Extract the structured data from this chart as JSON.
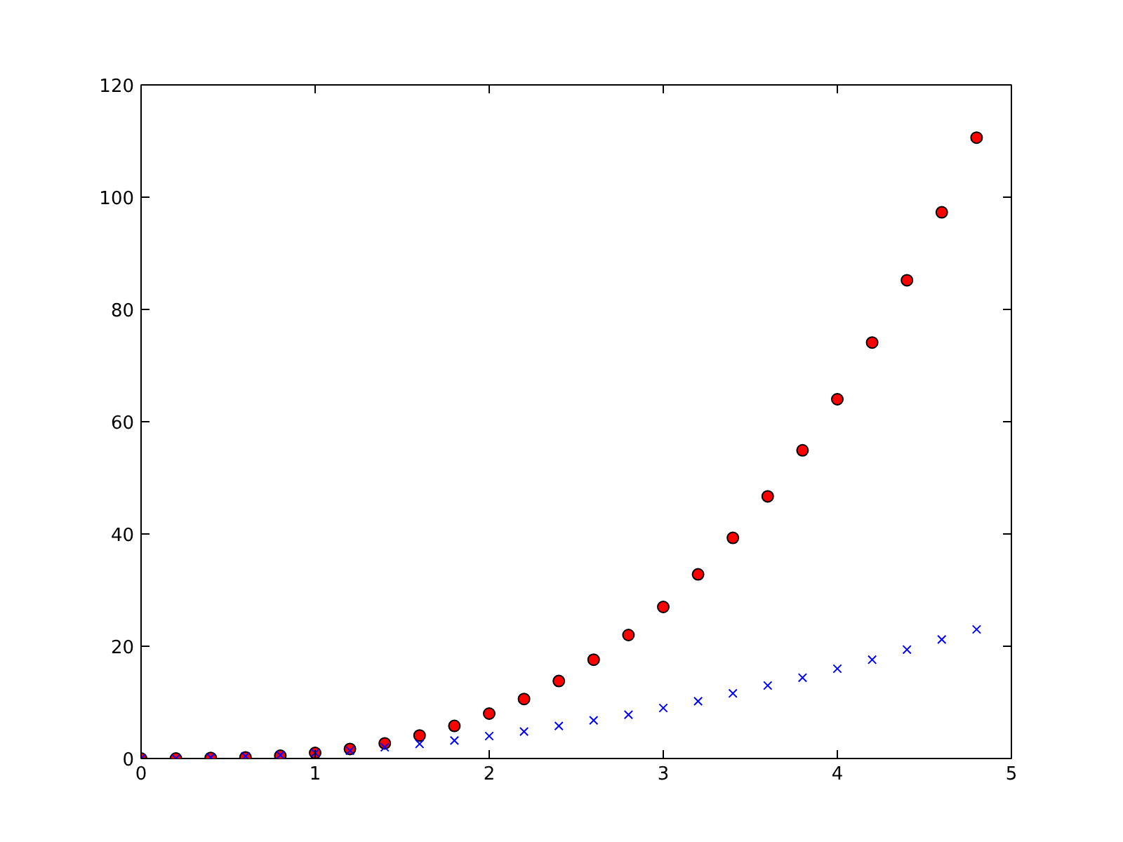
{
  "chart_data": {
    "type": "scatter",
    "x": [
      0,
      0.2,
      0.4,
      0.6,
      0.8,
      1,
      1.2,
      1.4,
      1.6,
      1.8,
      2,
      2.2,
      2.4,
      2.6,
      2.8,
      3,
      3.2,
      3.4,
      3.6,
      3.8,
      4,
      4.2,
      4.4,
      4.6,
      4.8
    ],
    "series": [
      {
        "color": "#ff0000",
        "marker": "circle",
        "values": [
          0,
          0,
          0.1,
          0.2,
          0.5,
          1,
          1.7,
          2.7,
          4.1,
          5.8,
          8,
          10.6,
          13.8,
          17.6,
          22,
          27,
          32.8,
          39.3,
          46.7,
          54.9,
          64,
          74.1,
          85.2,
          97.3,
          110.6
        ]
      },
      {
        "color": "#0000ff",
        "marker": "cross",
        "values": [
          0,
          0,
          0.2,
          0.4,
          0.6,
          1,
          1.4,
          2,
          2.6,
          3.2,
          4,
          4.8,
          5.8,
          6.8,
          7.8,
          9,
          10.2,
          11.6,
          13,
          14.4,
          16,
          17.6,
          19.4,
          21.2,
          23
        ]
      }
    ],
    "xlim": [
      0,
      5
    ],
    "ylim": [
      0,
      120
    ],
    "xticks": [
      0,
      1,
      2,
      3,
      4,
      5
    ],
    "yticks": [
      0,
      20,
      40,
      60,
      80,
      100,
      120
    ],
    "grid": false
  }
}
